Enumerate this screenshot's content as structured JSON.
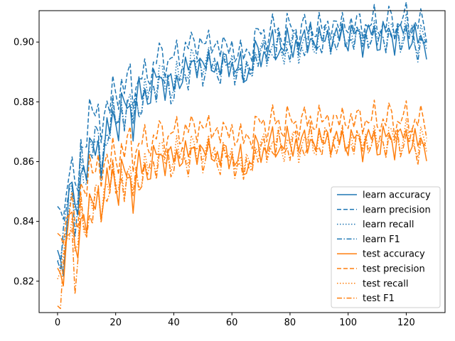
{
  "chart_data": {
    "type": "line",
    "title": "",
    "xlabel": "",
    "ylabel": "",
    "xlim": [
      -6.35,
      133.35
    ],
    "ylim": [
      0.8095,
      0.9105
    ],
    "grid": false,
    "legend_position": "lower-right",
    "x_ticks": [
      0,
      20,
      40,
      60,
      80,
      100,
      120
    ],
    "x_tick_labels": [
      "0",
      "20",
      "40",
      "60",
      "80",
      "100",
      "120"
    ],
    "y_ticks": [
      0.82,
      0.84,
      0.86,
      0.88,
      0.9
    ],
    "y_tick_labels": [
      "0.82",
      "0.84",
      "0.86",
      "0.88",
      "0.90"
    ],
    "x_keypoints": [
      0,
      3,
      4,
      5,
      6,
      8,
      12,
      15,
      20,
      25,
      30,
      35,
      40,
      45,
      50,
      55,
      60,
      64,
      70,
      80,
      90,
      100,
      110,
      120,
      127
    ],
    "series": [
      {
        "name": "learn accuracy",
        "color": "#1f77b4",
        "style": "solid",
        "values": [
          0.823,
          0.832,
          0.855,
          0.853,
          0.839,
          0.855,
          0.865,
          0.862,
          0.876,
          0.877,
          0.882,
          0.888,
          0.885,
          0.892,
          0.893,
          0.892,
          0.893,
          0.889,
          0.897,
          0.899,
          0.901,
          0.902,
          0.902,
          0.903,
          0.899
        ]
      },
      {
        "name": "learn precision",
        "color": "#1f77b4",
        "style": "dashed",
        "values": [
          0.836,
          0.848,
          0.863,
          0.86,
          0.845,
          0.863,
          0.878,
          0.873,
          0.884,
          0.886,
          0.888,
          0.895,
          0.894,
          0.899,
          0.9,
          0.899,
          0.898,
          0.895,
          0.903,
          0.904,
          0.905,
          0.906,
          0.906,
          0.907,
          0.905
        ]
      },
      {
        "name": "learn recall",
        "color": "#1f77b4",
        "style": "dotted",
        "values": [
          0.823,
          0.832,
          0.855,
          0.853,
          0.839,
          0.855,
          0.865,
          0.862,
          0.876,
          0.877,
          0.882,
          0.888,
          0.885,
          0.892,
          0.893,
          0.892,
          0.893,
          0.889,
          0.897,
          0.899,
          0.901,
          0.902,
          0.902,
          0.903,
          0.899
        ]
      },
      {
        "name": "learn F1",
        "color": "#1f77b4",
        "style": "dashdot",
        "values": [
          0.827,
          0.835,
          0.857,
          0.855,
          0.838,
          0.856,
          0.866,
          0.863,
          0.876,
          0.876,
          0.881,
          0.887,
          0.884,
          0.891,
          0.892,
          0.891,
          0.892,
          0.888,
          0.896,
          0.898,
          0.9,
          0.901,
          0.901,
          0.902,
          0.898
        ]
      },
      {
        "name": "test accuracy",
        "color": "#ff7f0e",
        "style": "solid",
        "values": [
          0.817,
          0.83,
          0.845,
          0.843,
          0.825,
          0.84,
          0.845,
          0.848,
          0.855,
          0.853,
          0.857,
          0.862,
          0.861,
          0.863,
          0.864,
          0.862,
          0.862,
          0.858,
          0.865,
          0.866,
          0.867,
          0.867,
          0.867,
          0.868,
          0.865
        ]
      },
      {
        "name": "test precision",
        "color": "#ff7f0e",
        "style": "dashed",
        "values": [
          0.827,
          0.84,
          0.85,
          0.848,
          0.832,
          0.851,
          0.857,
          0.858,
          0.862,
          0.865,
          0.866,
          0.869,
          0.869,
          0.871,
          0.872,
          0.87,
          0.87,
          0.867,
          0.873,
          0.873,
          0.874,
          0.874,
          0.874,
          0.874,
          0.873
        ]
      },
      {
        "name": "test recall",
        "color": "#ff7f0e",
        "style": "dotted",
        "values": [
          0.817,
          0.83,
          0.845,
          0.843,
          0.825,
          0.84,
          0.845,
          0.848,
          0.855,
          0.853,
          0.857,
          0.862,
          0.861,
          0.863,
          0.864,
          0.862,
          0.862,
          0.858,
          0.865,
          0.866,
          0.867,
          0.867,
          0.867,
          0.868,
          0.865
        ]
      },
      {
        "name": "test F1",
        "color": "#ff7f0e",
        "style": "dashdot",
        "values": [
          0.812,
          0.826,
          0.842,
          0.84,
          0.819,
          0.838,
          0.844,
          0.847,
          0.853,
          0.852,
          0.856,
          0.861,
          0.86,
          0.862,
          0.863,
          0.861,
          0.861,
          0.856,
          0.864,
          0.865,
          0.866,
          0.866,
          0.866,
          0.867,
          0.864
        ]
      }
    ]
  }
}
